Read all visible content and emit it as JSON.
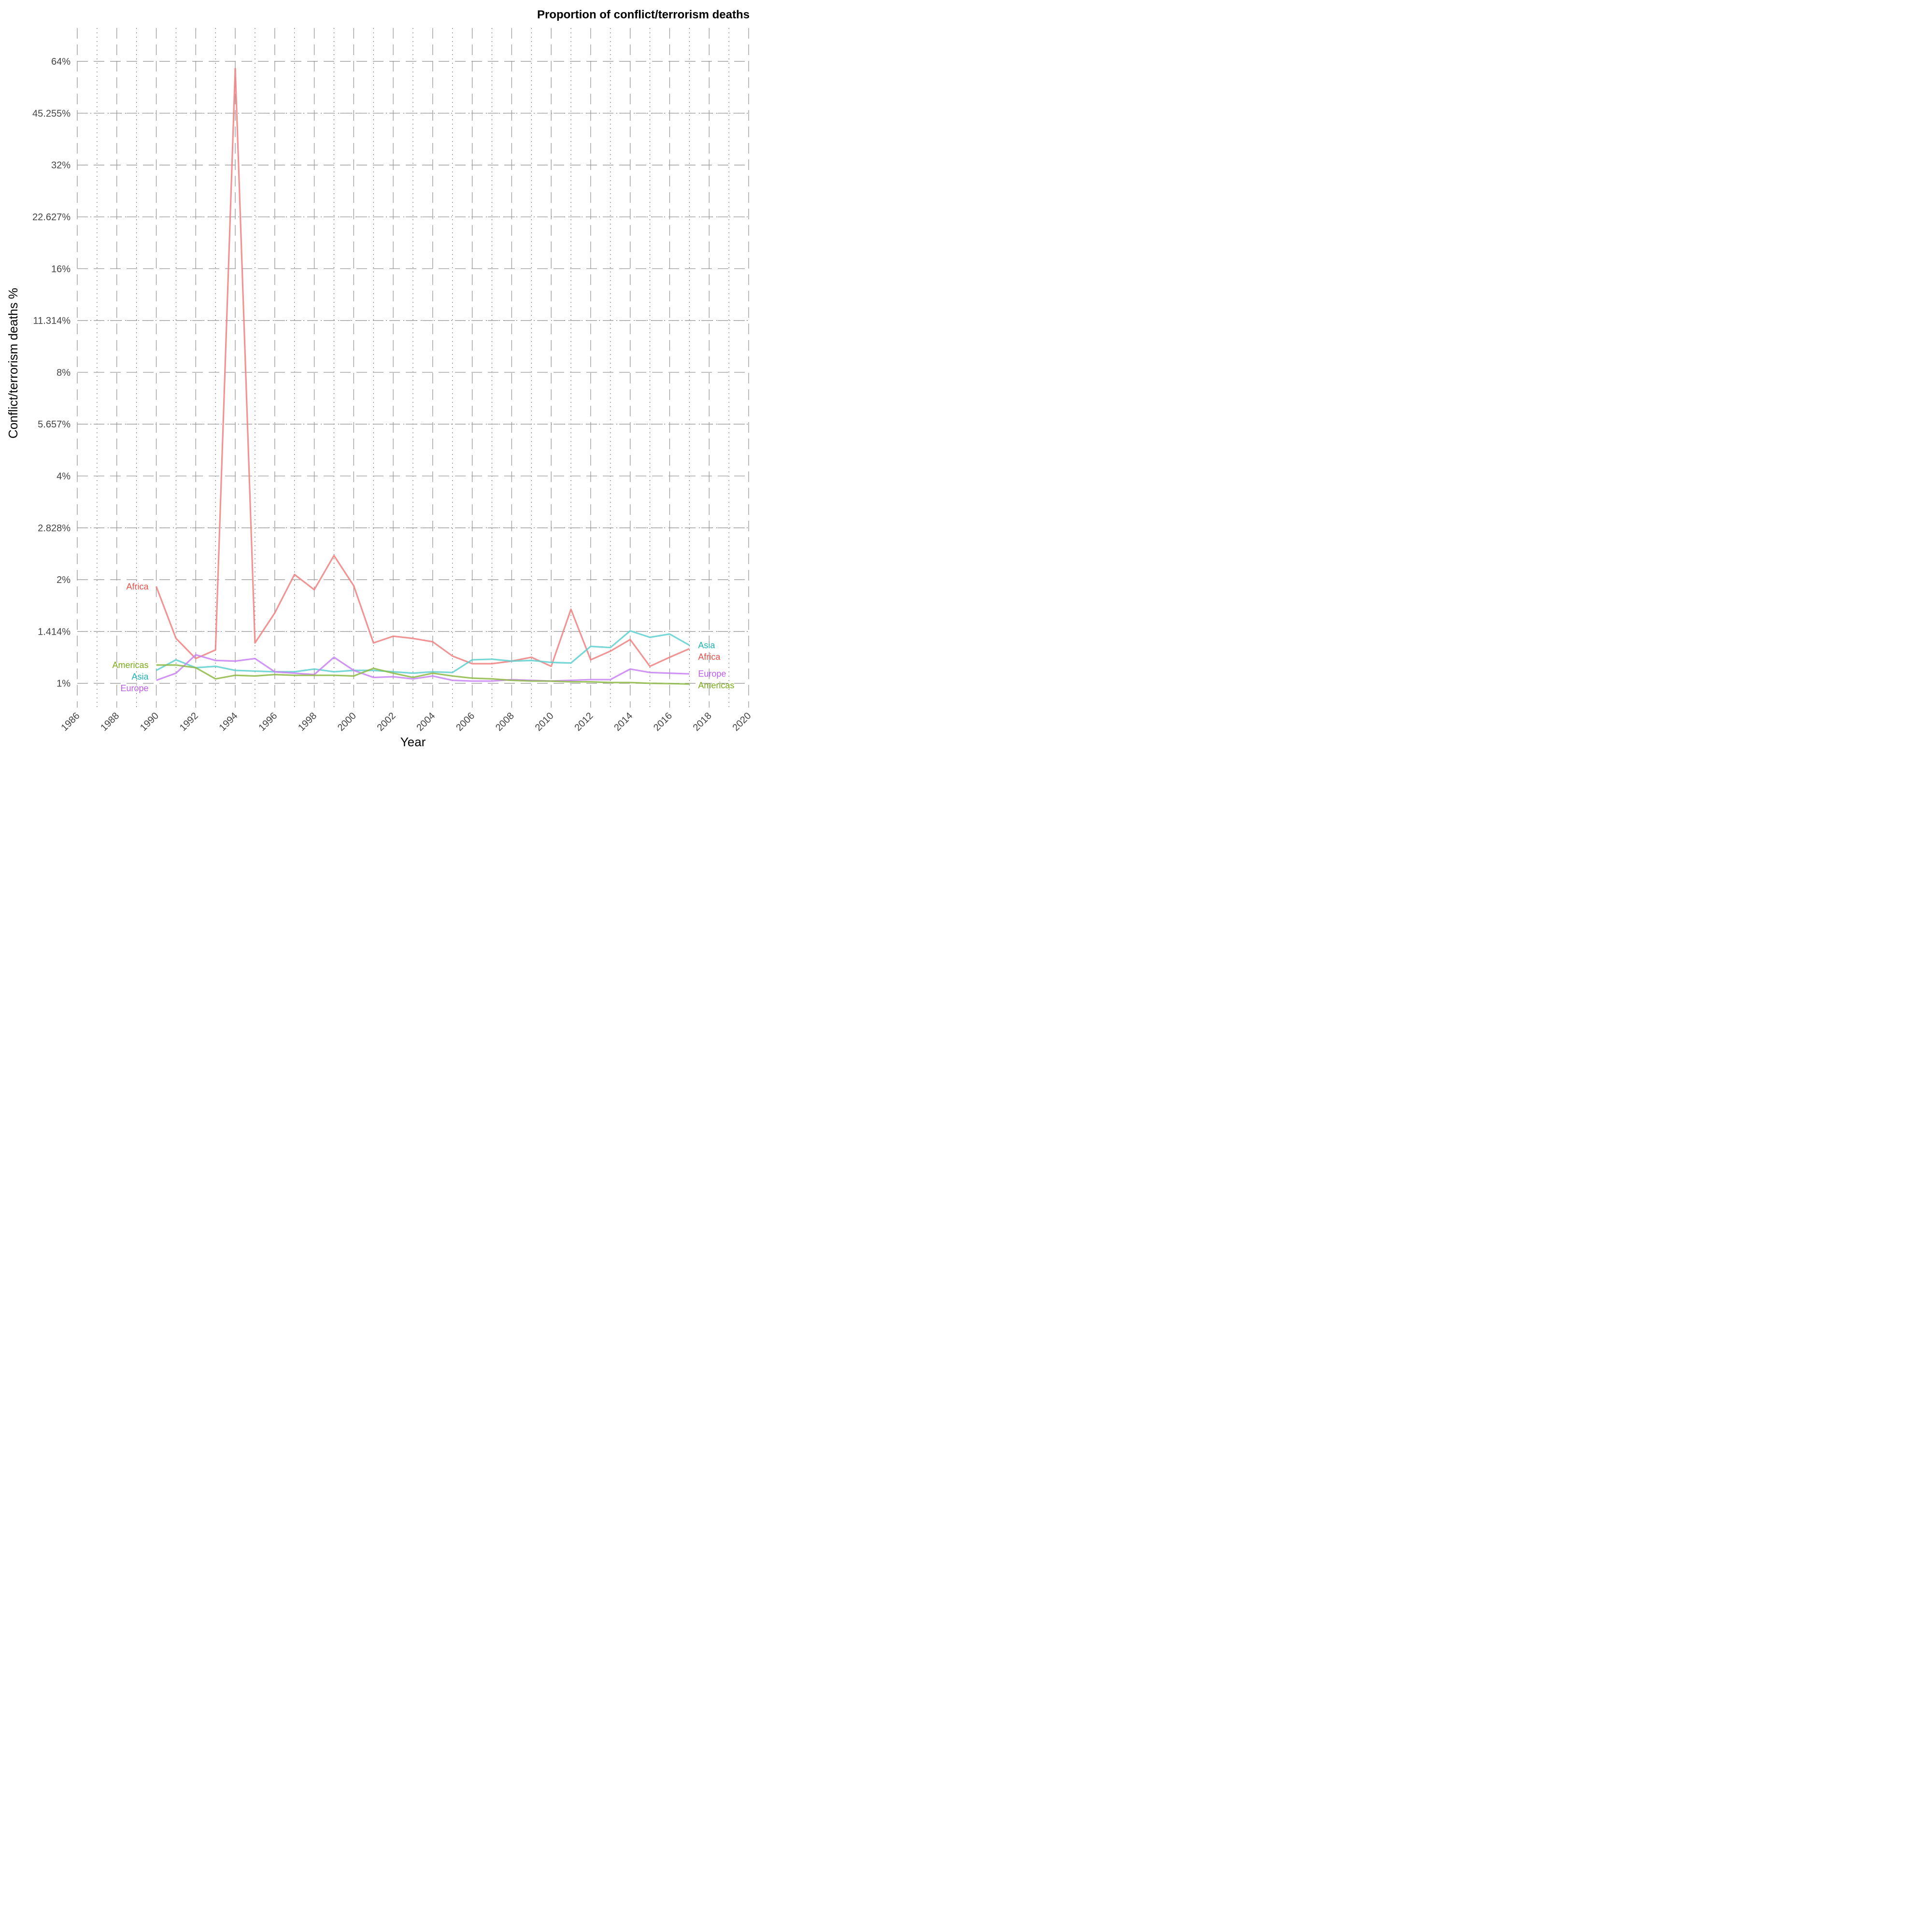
{
  "chart_data": {
    "type": "line",
    "title": "Proportion of conflict/terrorism deaths",
    "xlabel": "Year",
    "ylabel": "Conflict/terrorism deaths %",
    "y_scale": "log2",
    "xlim": [
      1986,
      2020
    ],
    "ylim": [
      0.85,
      80
    ],
    "x_ticks": [
      "1986",
      "1988",
      "1990",
      "1992",
      "1994",
      "1996",
      "1998",
      "2000",
      "2002",
      "2004",
      "2006",
      "2008",
      "2010",
      "2012",
      "2014",
      "2016",
      "2018",
      "2020"
    ],
    "y_ticks": [
      {
        "value": 1,
        "label": "1%"
      },
      {
        "value": 1.414,
        "label": "1.414%"
      },
      {
        "value": 2,
        "label": "2%"
      },
      {
        "value": 2.828,
        "label": "2.828%"
      },
      {
        "value": 4,
        "label": "4%"
      },
      {
        "value": 5.657,
        "label": "5.657%"
      },
      {
        "value": 8,
        "label": "8%"
      },
      {
        "value": 11.314,
        "label": "11.314%"
      },
      {
        "value": 16,
        "label": "16%"
      },
      {
        "value": 22.627,
        "label": "22.627%"
      },
      {
        "value": 32,
        "label": "32%"
      },
      {
        "value": 45.255,
        "label": "45.255%"
      },
      {
        "value": 64,
        "label": "64%"
      }
    ],
    "grid": "on",
    "legend": "none (direct labels at line ends)",
    "x": [
      1990,
      1991,
      1992,
      1993,
      1994,
      1995,
      1996,
      1997,
      1998,
      1999,
      2000,
      2001,
      2002,
      2003,
      2004,
      2005,
      2006,
      2007,
      2008,
      2009,
      2010,
      2011,
      2012,
      2013,
      2014,
      2015,
      2016,
      2017
    ],
    "series": [
      {
        "name": "Africa",
        "color": "#f08080",
        "label_color": "#e8504a",
        "values": [
          1.91,
          1.35,
          1.18,
          1.25,
          61.0,
          1.31,
          1.6,
          2.07,
          1.87,
          2.35,
          1.92,
          1.31,
          1.37,
          1.35,
          1.32,
          1.2,
          1.14,
          1.14,
          1.16,
          1.19,
          1.12,
          1.64,
          1.17,
          1.24,
          1.34,
          1.12,
          1.19,
          1.26
        ]
      },
      {
        "name": "Asia",
        "color": "#5fcfcf",
        "label_color": "#1fb3b3",
        "values": [
          1.09,
          1.17,
          1.11,
          1.12,
          1.09,
          1.085,
          1.08,
          1.08,
          1.1,
          1.08,
          1.09,
          1.09,
          1.08,
          1.07,
          1.08,
          1.075,
          1.17,
          1.175,
          1.16,
          1.165,
          1.15,
          1.145,
          1.28,
          1.27,
          1.42,
          1.36,
          1.39,
          1.29
        ]
      },
      {
        "name": "Europe",
        "color": "#c880f5",
        "label_color": "#bd5cf0",
        "values": [
          1.02,
          1.07,
          1.21,
          1.165,
          1.16,
          1.18,
          1.08,
          1.07,
          1.06,
          1.19,
          1.09,
          1.04,
          1.045,
          1.03,
          1.05,
          1.02,
          1.015,
          1.015,
          1.025,
          1.02,
          1.015,
          1.02,
          1.025,
          1.025,
          1.1,
          1.075,
          1.07,
          1.065
        ]
      },
      {
        "name": "Americas",
        "color": "#8db845",
        "label_color": "#7aaa1a",
        "values": [
          1.13,
          1.13,
          1.11,
          1.03,
          1.055,
          1.05,
          1.06,
          1.055,
          1.055,
          1.055,
          1.05,
          1.105,
          1.07,
          1.04,
          1.07,
          1.05,
          1.035,
          1.03,
          1.02,
          1.015,
          1.015,
          1.01,
          1.01,
          1.005,
          1.005,
          1.0,
          0.998,
          0.995
        ]
      }
    ]
  }
}
